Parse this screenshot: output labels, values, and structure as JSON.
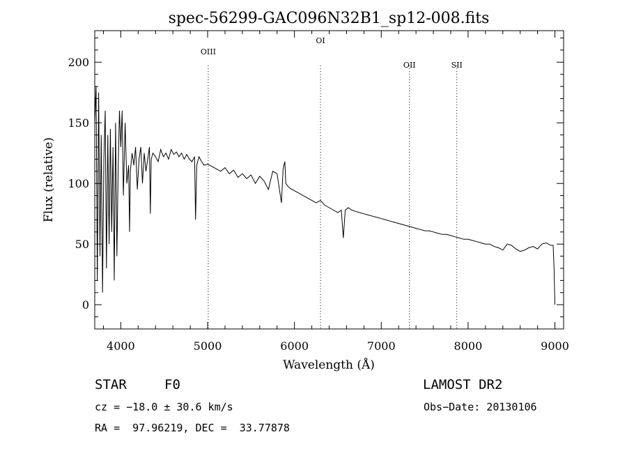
{
  "chart_data": {
    "type": "line",
    "title": "spec-56299-GAC096N32B1_sp12-008.fits",
    "xlabel": "Wavelength (Å)",
    "ylabel": "Flux (relative)",
    "xlim": [
      3700,
      9100
    ],
    "ylim": [
      -20,
      226
    ],
    "xticks": [
      4000,
      5000,
      6000,
      7000,
      8000,
      9000
    ],
    "yticks": [
      0,
      50,
      100,
      150,
      200
    ],
    "grid": false,
    "series": [
      {
        "x": [
          3700,
          3715,
          3730,
          3745,
          3760,
          3775,
          3790,
          3805,
          3820,
          3835,
          3850,
          3865,
          3880,
          3895,
          3910,
          3925,
          3940,
          3955,
          3970,
          3985,
          4000,
          4015,
          4030,
          4050,
          4070,
          4090,
          4101,
          4110,
          4130,
          4150,
          4170,
          4190,
          4210,
          4230,
          4250,
          4270,
          4290,
          4310,
          4330,
          4340,
          4350,
          4370,
          4400,
          4430,
          4460,
          4490,
          4520,
          4550,
          4580,
          4610,
          4640,
          4670,
          4700,
          4730,
          4760,
          4790,
          4820,
          4850,
          4861,
          4875,
          4900,
          4930,
          4960,
          5000,
          5050,
          5100,
          5150,
          5200,
          5250,
          5300,
          5350,
          5400,
          5450,
          5500,
          5550,
          5600,
          5650,
          5700,
          5750,
          5800,
          5850,
          5870,
          5890,
          5900,
          5920,
          5950,
          6000,
          6050,
          6100,
          6150,
          6200,
          6250,
          6300,
          6350,
          6400,
          6450,
          6500,
          6540,
          6563,
          6585,
          6620,
          6660,
          6700,
          6750,
          6800,
          6850,
          6900,
          6950,
          7000,
          7050,
          7100,
          7150,
          7200,
          7250,
          7300,
          7350,
          7400,
          7450,
          7500,
          7550,
          7600,
          7650,
          7700,
          7750,
          7800,
          7850,
          7900,
          7950,
          8000,
          8050,
          8100,
          8150,
          8200,
          8250,
          8300,
          8350,
          8400,
          8450,
          8500,
          8550,
          8600,
          8650,
          8700,
          8750,
          8800,
          8850,
          8900,
          8950,
          8980,
          8990,
          9000
        ],
        "values": [
          150,
          180,
          20,
          175,
          40,
          140,
          10,
          120,
          160,
          30,
          140,
          50,
          145,
          60,
          130,
          20,
          150,
          40,
          115,
          160,
          130,
          160,
          90,
          150,
          100,
          115,
          60,
          110,
          125,
          115,
          130,
          95,
          120,
          130,
          100,
          125,
          110,
          120,
          130,
          75,
          120,
          125,
          122,
          118,
          128,
          122,
          125,
          120,
          128,
          124,
          126,
          122,
          125,
          120,
          124,
          120,
          118,
          122,
          70,
          115,
          122,
          118,
          115,
          116,
          114,
          112,
          110,
          113,
          108,
          111,
          105,
          108,
          104,
          107,
          100,
          106,
          102,
          95,
          110,
          108,
          84,
          112,
          118,
          100,
          98,
          96,
          94,
          92,
          90,
          88,
          86,
          84,
          86,
          82,
          80,
          78,
          76,
          78,
          55,
          78,
          80,
          78,
          77,
          76,
          75,
          74,
          73,
          72,
          71,
          70,
          69,
          68,
          67,
          66,
          65,
          64,
          63,
          62,
          61,
          61,
          60,
          59,
          58,
          58,
          57,
          56,
          55,
          54,
          54,
          53,
          52,
          51,
          50,
          50,
          48,
          47,
          45,
          50,
          49,
          46,
          44,
          45,
          47,
          48,
          46,
          50,
          51,
          49,
          49,
          30,
          0
        ]
      }
    ],
    "annotations": [
      {
        "label": "OIII",
        "x": 5007
      },
      {
        "label": "OI",
        "x": 6300
      },
      {
        "label": "OII",
        "x": 7325
      },
      {
        "label": "SII",
        "x": 7870
      }
    ]
  },
  "info": {
    "object_type": "STAR",
    "subclass": "F0",
    "survey": "LAMOST DR2",
    "redshift": "cz = −18.0 ± 30.6 km/s",
    "obs_date": "Obs−Date: 20130106",
    "coords": "RA =  97.96219, DEC =  33.77878"
  }
}
